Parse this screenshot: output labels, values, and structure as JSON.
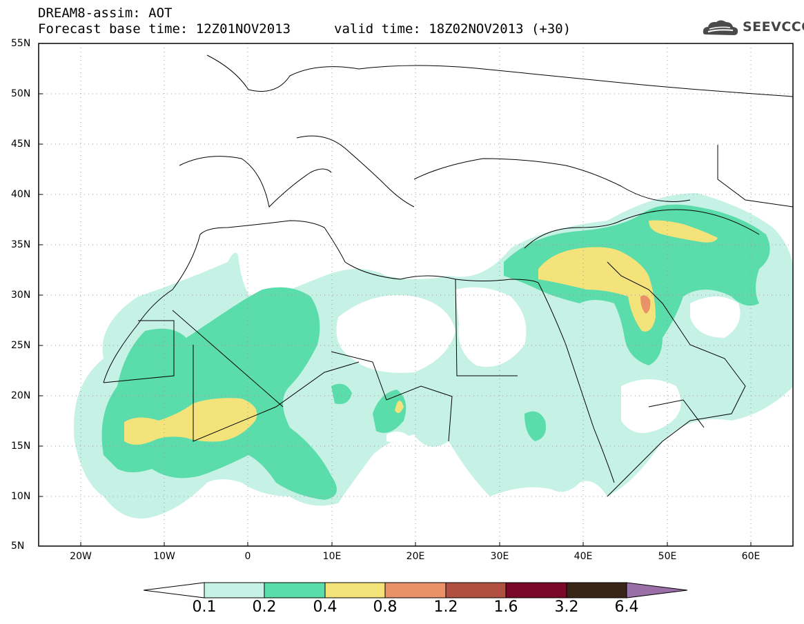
{
  "header": {
    "line1": "DREAM8-assim: AOT",
    "line2": "Forecast base time: 12Z01NOV2013",
    "valid": "valid time: 18Z02NOV2013 (+30)",
    "logo_text": "SEEVCCC"
  },
  "map": {
    "lon_range": [
      -25,
      65
    ],
    "lat_range": [
      5,
      55
    ],
    "lat_labels": [
      "55N",
      "50N",
      "45N",
      "40N",
      "35N",
      "30N",
      "25N",
      "20N",
      "15N",
      "10N",
      "5N"
    ],
    "lon_labels": [
      "20W",
      "10W",
      "0",
      "10E",
      "20E",
      "30E",
      "40E",
      "50E",
      "60E"
    ],
    "gridlines": "dotted"
  },
  "colorbar": {
    "labels": [
      "0.1",
      "0.2",
      "0.4",
      "0.8",
      "1.2",
      "1.6",
      "3.2",
      "6.4"
    ],
    "colors": [
      "#ffffff",
      "#c6f2e6",
      "#5adcab",
      "#f4e37a",
      "#e99269",
      "#b05040",
      "#7a0928",
      "#3a2417",
      "#9a6fa8"
    ]
  }
}
